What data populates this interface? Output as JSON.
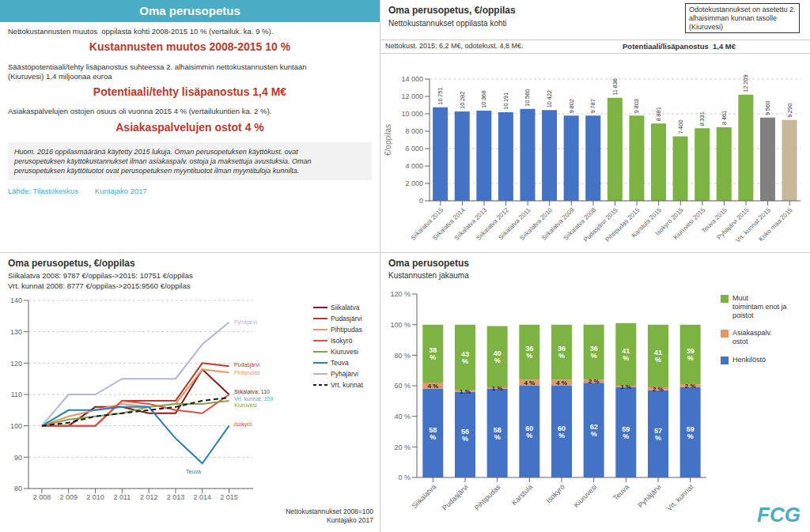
{
  "chart_data": [
    {
      "type": "text",
      "title": "Oma perusopetus",
      "color": "#4BACC6",
      "annotations": [
        {
          "text": "Nettokustannusten muutos  oppilasta kohti 2008-2015 10 % (vertailuk. ka. 9 %)."
        },
        {
          "text": "Kustannusten muutos 2008-2015 10 %",
          "color": "#C0392B"
        },
        {
          "text": "Säästöpotentiaali/tehty lisäpanostus suhteessa 2. alhaisimmin nettokustannusten kuntaan\n(Kiuruvesi) 1,4 miljoonaa euroa"
        },
        {
          "text": "Potentiaali/tehty lisäpanostus 1,4 M€",
          "color": "#C0392B"
        },
        {
          "text": "Asiakaspalvelujen ostojen osuus oli vuonna 2015 4 % (vertailukuntien ka. 2 %)."
        },
        {
          "text": "Asiakaspalvelujen ostot 4 %",
          "color": "#C0392B"
        },
        {
          "text": "Huom. 2016 oppilasmääränä käytetty 2015 lukuja. Oman perusopetuksen käyttökust. ovat\nperusopetuksen käyttökustannukset ilman asiakaspalv. ostoja ja maksettuja avustuksia. Oman\nperusopetuksen käyttötuotot ovat perusopetuksen myyntituotot ilman myyntituloja kunnilta."
        },
        {
          "text": "Lähde: Tilastokeskus        Kuntajako 2017",
          "color": "#4BACC6"
        }
      ]
    },
    {
      "type": "bar",
      "title": "Oma perusopetus, €/oppilas",
      "subtitle": "Nettokustannukset oppilasta kohti",
      "annotations": [
        {
          "text": "Odotekustannukset on asetettu 2.\nalhaisimman kunnan tasolle\n(Kiuruvesi)"
        },
        {
          "text": "Nettokust. 2015: 6,2 M€, odotekust. 4,8 M€."
        },
        {
          "text": "Potentiaali/lisäpanostus  1,4 M€"
        }
      ],
      "ylabel": "€/oppilas",
      "categories": [
        "Siikalatva 2015",
        "Siikalatva 2014",
        "Siikalatva 2013",
        "Siikalatva 2012",
        "Siikalatva 2011",
        "Siikalatva 2010",
        "Siikalatva 2009",
        "Siikalatva 2008",
        "Pudasjärvi 2015",
        "Pihtipudas 2015",
        "Karstula 2015",
        "Isokyrö 2015",
        "Kiuruvesi 2015",
        "Teuva 2015",
        "Pyhäjärvi 2015",
        "Vrt. kunnat 2015",
        "Koko maa 2015"
      ],
      "values": [
        10751,
        10282,
        10368,
        10191,
        10560,
        10422,
        9802,
        9787,
        11836,
        9803,
        8881,
        7400,
        8331,
        8461,
        12209,
        9560,
        9290
      ],
      "value_labels": [
        "10 751",
        "10 282",
        "10 368",
        "10 191",
        "10 560",
        "10 422",
        "9 802",
        "9 787",
        "11 836",
        "9 803",
        "8 881",
        "7 400",
        "8 331",
        "8 461",
        "12 209",
        "9 560",
        "9 290"
      ],
      "colors": [
        "#4472C4",
        "#4472C4",
        "#4472C4",
        "#4472C4",
        "#4472C4",
        "#4472C4",
        "#4472C4",
        "#4472C4",
        "#7CB342",
        "#7CB342",
        "#7CB342",
        "#7CB342",
        "#7CB342",
        "#7CB342",
        "#7CB342",
        "#808080",
        "#C8B89A"
      ],
      "ylim": [
        0,
        14000
      ],
      "yticks": [
        0,
        {
          "value": 2000,
          "label": "2 000"
        },
        {
          "value": 4000,
          "label": "4 000"
        },
        {
          "value": 6000,
          "label": "6 000"
        },
        {
          "value": 8000,
          "label": "8 000"
        },
        {
          "value": 10000,
          "label": "10 000"
        },
        {
          "value": 12000,
          "label": "12 000"
        },
        {
          "value": 14000,
          "label": "14 000"
        }
      ],
      "grid": true,
      "data_labels": true
    },
    {
      "type": "line",
      "title": "Oma perusopetus, €/oppilas",
      "subtitle": "Siikalatva 2008: 9787 €/oppilas->2015: 10751 €/oppilas",
      "annotations": [
        {
          "text": "Vrt. kunnat 2008: 8777 €/oppilas->2015:9560 €/oppilas"
        },
        {
          "text": "Nettokustannukset 2008=100\nKuntajako 2017"
        },
        {
          "text": "Pyhäjärvi",
          "x": 2015.1,
          "y": 133,
          "color": "#B0B8D8"
        },
        {
          "text": "Pudasjärvi",
          "x": 2015.1,
          "y": 119.5,
          "color": "#C0392B"
        },
        {
          "text": "Pihtipudas",
          "x": 2015.1,
          "y": 117,
          "color": "#E59866"
        },
        {
          "text": "Siikalatva; 110",
          "x": 2015.1,
          "y": 111,
          "color": "#8B1A1A"
        },
        {
          "text": "Vrt. kunnat; 109",
          "x": 2015.1,
          "y": 108.5,
          "color": "#4BACC6"
        },
        {
          "text": "Kiuruvesi",
          "x": 2015.1,
          "y": 106.5,
          "color": "#82A44A"
        },
        {
          "text": "Isokyrö",
          "x": 2015.1,
          "y": 100.5,
          "color": "#E74C3C"
        },
        {
          "text": "Teuva",
          "x": 2013.3,
          "y": 85.5,
          "color": "#2980B9"
        }
      ],
      "x": [
        2008,
        2009,
        2010,
        2011,
        2012,
        2013,
        2014,
        2015
      ],
      "xlim": [
        2007.5,
        2015.9
      ],
      "xticks": [
        {
          "value": 2008,
          "label": "2 008"
        },
        {
          "value": 2009,
          "label": "2 009"
        },
        {
          "value": 2010,
          "label": "2 010"
        },
        {
          "value": 2011,
          "label": "2 011"
        },
        {
          "value": 2012,
          "label": "2 012"
        },
        {
          "value": 2013,
          "label": "2 013"
        },
        {
          "value": 2014,
          "label": "2 014"
        },
        {
          "value": 2015,
          "label": "2 015"
        }
      ],
      "ylim": [
        80,
        140
      ],
      "yticks": [
        80,
        90,
        100,
        110,
        120,
        130,
        140
      ],
      "grid": true,
      "legend": "right",
      "series": [
        {
          "name": "Siikalatva",
          "color": "#8B1A1A",
          "line_style": "solid",
          "values": [
            100,
            100,
            106,
            106,
            104,
            104,
            118,
            110
          ]
        },
        {
          "name": "Pudasjärvi",
          "color": "#C0392B",
          "line_style": "solid",
          "values": [
            100,
            100,
            100,
            108,
            108,
            108,
            120,
            119
          ]
        },
        {
          "name": "Pihtipudas",
          "color": "#E59866",
          "line_style": "solid",
          "values": [
            100,
            103,
            105,
            107,
            106,
            107,
            118,
            117
          ]
        },
        {
          "name": "Isokyrö",
          "color": "#E74C3C",
          "line_style": "solid",
          "values": [
            100,
            100,
            100,
            108,
            107,
            105,
            104,
            110
          ]
        },
        {
          "name": "Kiuruvesi",
          "color": "#82A44A",
          "line_style": "solid",
          "values": [
            100,
            102,
            103,
            104,
            106,
            107,
            107,
            108
          ]
        },
        {
          "name": "Teuva",
          "color": "#2980B9",
          "line_style": "solid",
          "values": [
            100,
            105,
            105,
            106,
            106,
            96,
            88,
            100
          ]
        },
        {
          "name": "Pyhäjärvi",
          "color": "#B0B8D8",
          "line_style": "solid",
          "values": [
            100,
            110,
            110,
            115,
            115,
            115,
            126,
            133
          ]
        },
        {
          "name": "Vrt. kunnat",
          "color": "#1A1A1A",
          "line_style": "dashed",
          "values": [
            100,
            101,
            103,
            104,
            105,
            106,
            108,
            109
          ]
        }
      ]
    },
    {
      "type": "bar",
      "stacked": true,
      "title": "Oma perusopetus",
      "subtitle": "Kustannusten jakauma",
      "categories": [
        "Siikalatva",
        "Pudasjärvi",
        "Pihtipudas",
        "Karstula",
        "Isokyrö",
        "Kiuruvesi",
        "Teuva",
        "Pyhäjärvi",
        "Vrt. kunnat"
      ],
      "series": [
        {
          "name": "Henkilöstö",
          "color": "#4472C4",
          "values": [
            58,
            56,
            58,
            60,
            60,
            62,
            59,
            57,
            59
          ],
          "value_labels": [
            "58 %",
            "56 %",
            "58 %",
            "60 %",
            "60 %",
            "62 %",
            "59 %",
            "57 %",
            "59 %"
          ]
        },
        {
          "name": "Asiakaspalv.\nostot",
          "color": "#E59866",
          "values": [
            4,
            1,
            1,
            4,
            4,
            2,
            1,
            2,
            2
          ],
          "value_labels": [
            "4 %",
            "1 %",
            "1 %",
            "4 %",
            "4 %",
            "2 %",
            "1 %",
            "2 %",
            "2 %"
          ]
        },
        {
          "name": "Muut\ntoimintam enot ja\npoistot",
          "color": "#7CB342",
          "values": [
            38,
            43,
            40,
            36,
            36,
            36,
            41,
            41,
            39
          ],
          "value_labels": [
            "38 %",
            "43 %",
            "40 %",
            "36 %",
            "36 %",
            "36 %",
            "41 %",
            "41 %",
            "39 %"
          ]
        }
      ],
      "ylim": [
        0,
        120
      ],
      "yticks": [
        {
          "value": 0,
          "label": "0 %"
        },
        {
          "value": 20,
          "label": "20 %"
        },
        {
          "value": 40,
          "label": "40 %"
        },
        {
          "value": 60,
          "label": "60 %"
        },
        {
          "value": 80,
          "label": "80 %"
        },
        {
          "value": 100,
          "label": "100 %"
        },
        {
          "value": 120,
          "label": "120 %"
        }
      ],
      "grid": false,
      "legend": "right",
      "data_labels": true,
      "annotations": [
        {
          "text": "FCG",
          "color": "#4BACC6"
        }
      ]
    }
  ]
}
